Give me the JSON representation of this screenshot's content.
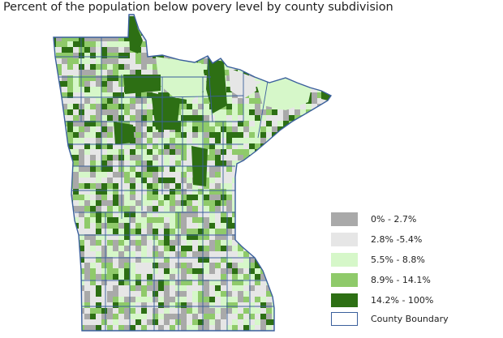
{
  "title": "Percent of the population below povery level by county subdivision",
  "legend": {
    "items": [
      {
        "label": "0% - 2.7%",
        "color": "#a9a9a9",
        "border": "#a9a9a9"
      },
      {
        "label": "2.8% -5.4%",
        "color": "#e6e6e6",
        "border": "#e6e6e6"
      },
      {
        "label": "5.5% - 8.8%",
        "color": "#d6f7c9",
        "border": "#d6f7c9"
      },
      {
        "label": "8.9% - 14.1%",
        "color": "#8fca6a",
        "border": "#8fca6a"
      },
      {
        "label": "14.2% - 100%",
        "color": "#2d6f14",
        "border": "#2d6f14"
      },
      {
        "label": "County Boundary",
        "color": "#ffffff",
        "border": "#3a5f9c"
      }
    ]
  }
}
